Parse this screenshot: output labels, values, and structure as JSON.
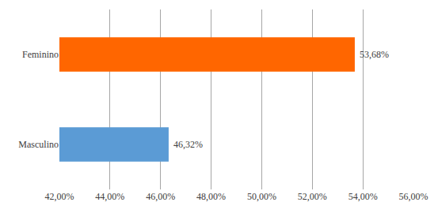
{
  "chart_data": {
    "type": "bar",
    "orientation": "horizontal",
    "categories": [
      "Masculino",
      "Feminino"
    ],
    "values": [
      46.32,
      53.68
    ],
    "value_labels": [
      "46,32%",
      "53,68%"
    ],
    "colors": [
      "#5b9bd5",
      "#ff6600"
    ],
    "data_labels": true,
    "xlim": [
      42,
      56
    ],
    "xticks": [
      {
        "value": 42,
        "label": "42,00%"
      },
      {
        "value": 44,
        "label": "44,00%"
      },
      {
        "value": 46,
        "label": "46,00%"
      },
      {
        "value": 48,
        "label": "48,00%"
      },
      {
        "value": 50,
        "label": "50,00%"
      },
      {
        "value": 52,
        "label": "52,00%"
      },
      {
        "value": 54,
        "label": "54,00%"
      },
      {
        "value": 56,
        "label": "56,00%"
      }
    ],
    "grid": true
  }
}
